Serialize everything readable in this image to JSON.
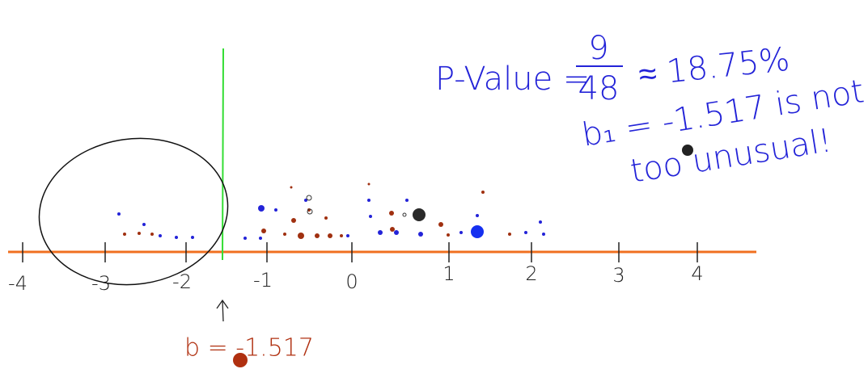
{
  "annotations": {
    "p_value": {
      "label": "P-Value =",
      "numerator": "9",
      "denominator": "48",
      "approx": "≈ 18.75%"
    },
    "conclusion": {
      "line1": "b₁ = -1.517 is not",
      "line2": "too unusual!"
    },
    "observed": "b = -1.517"
  },
  "axis": {
    "ticks": [
      "-4",
      "-3",
      "-2",
      "-1",
      "0",
      "1",
      "2",
      "3",
      "4"
    ]
  }
}
